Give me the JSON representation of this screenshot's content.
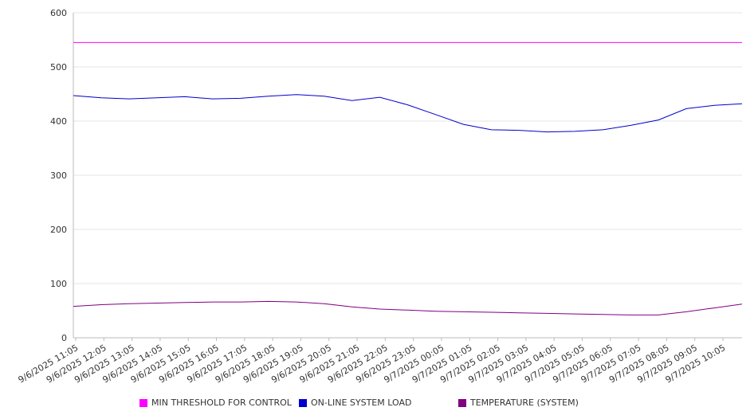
{
  "chart_data": {
    "type": "line",
    "title": "",
    "xlabel": "",
    "ylabel": "",
    "ylim": [
      0,
      600
    ],
    "y_ticks": [
      0,
      100,
      200,
      300,
      400,
      500,
      600
    ],
    "grid": true,
    "legend_position": "bottom",
    "x_ticks": [
      "9/6/2025 11:05",
      "9/6/2025 12:05",
      "9/6/2025 13:05",
      "9/6/2025 14:05",
      "9/6/2025 15:05",
      "9/6/2025 16:05",
      "9/6/2025 17:05",
      "9/6/2025 18:05",
      "9/6/2025 19:05",
      "9/6/2025 20:05",
      "9/6/2025 21:05",
      "9/6/2025 22:05",
      "9/6/2025 23:05",
      "9/7/2025 00:05",
      "9/7/2025 01:05",
      "9/7/2025 02:05",
      "9/7/2025 03:05",
      "9/7/2025 04:05",
      "9/7/2025 05:05",
      "9/7/2025 06:05",
      "9/7/2025 07:05",
      "9/7/2025 08:05",
      "9/7/2025 09:05",
      "9/7/2025 10:05"
    ],
    "series": [
      {
        "name": "MIN THRESHOLD FOR CONTROL",
        "color": "#ff00ff",
        "values": [
          545,
          545,
          545,
          545,
          545,
          545,
          545,
          545,
          545,
          545,
          545,
          545,
          545,
          545,
          545,
          545,
          545,
          545,
          545,
          545,
          545,
          545,
          545,
          545,
          545
        ]
      },
      {
        "name": "ON-LINE SYSTEM LOAD",
        "color": "#0000cc",
        "values": [
          447,
          443,
          441,
          443,
          445,
          441,
          442,
          446,
          449,
          446,
          438,
          444,
          430,
          412,
          394,
          384,
          383,
          380,
          381,
          384,
          392,
          402,
          423,
          429,
          432
        ]
      },
      {
        "name": "TEMPERATURE (SYSTEM)",
        "color": "#800080",
        "values": [
          58,
          61,
          63,
          64,
          65,
          66,
          66,
          67,
          66,
          63,
          57,
          53,
          51,
          49,
          48,
          47,
          46,
          45,
          44,
          43,
          42,
          42,
          48,
          55,
          62
        ]
      }
    ]
  }
}
